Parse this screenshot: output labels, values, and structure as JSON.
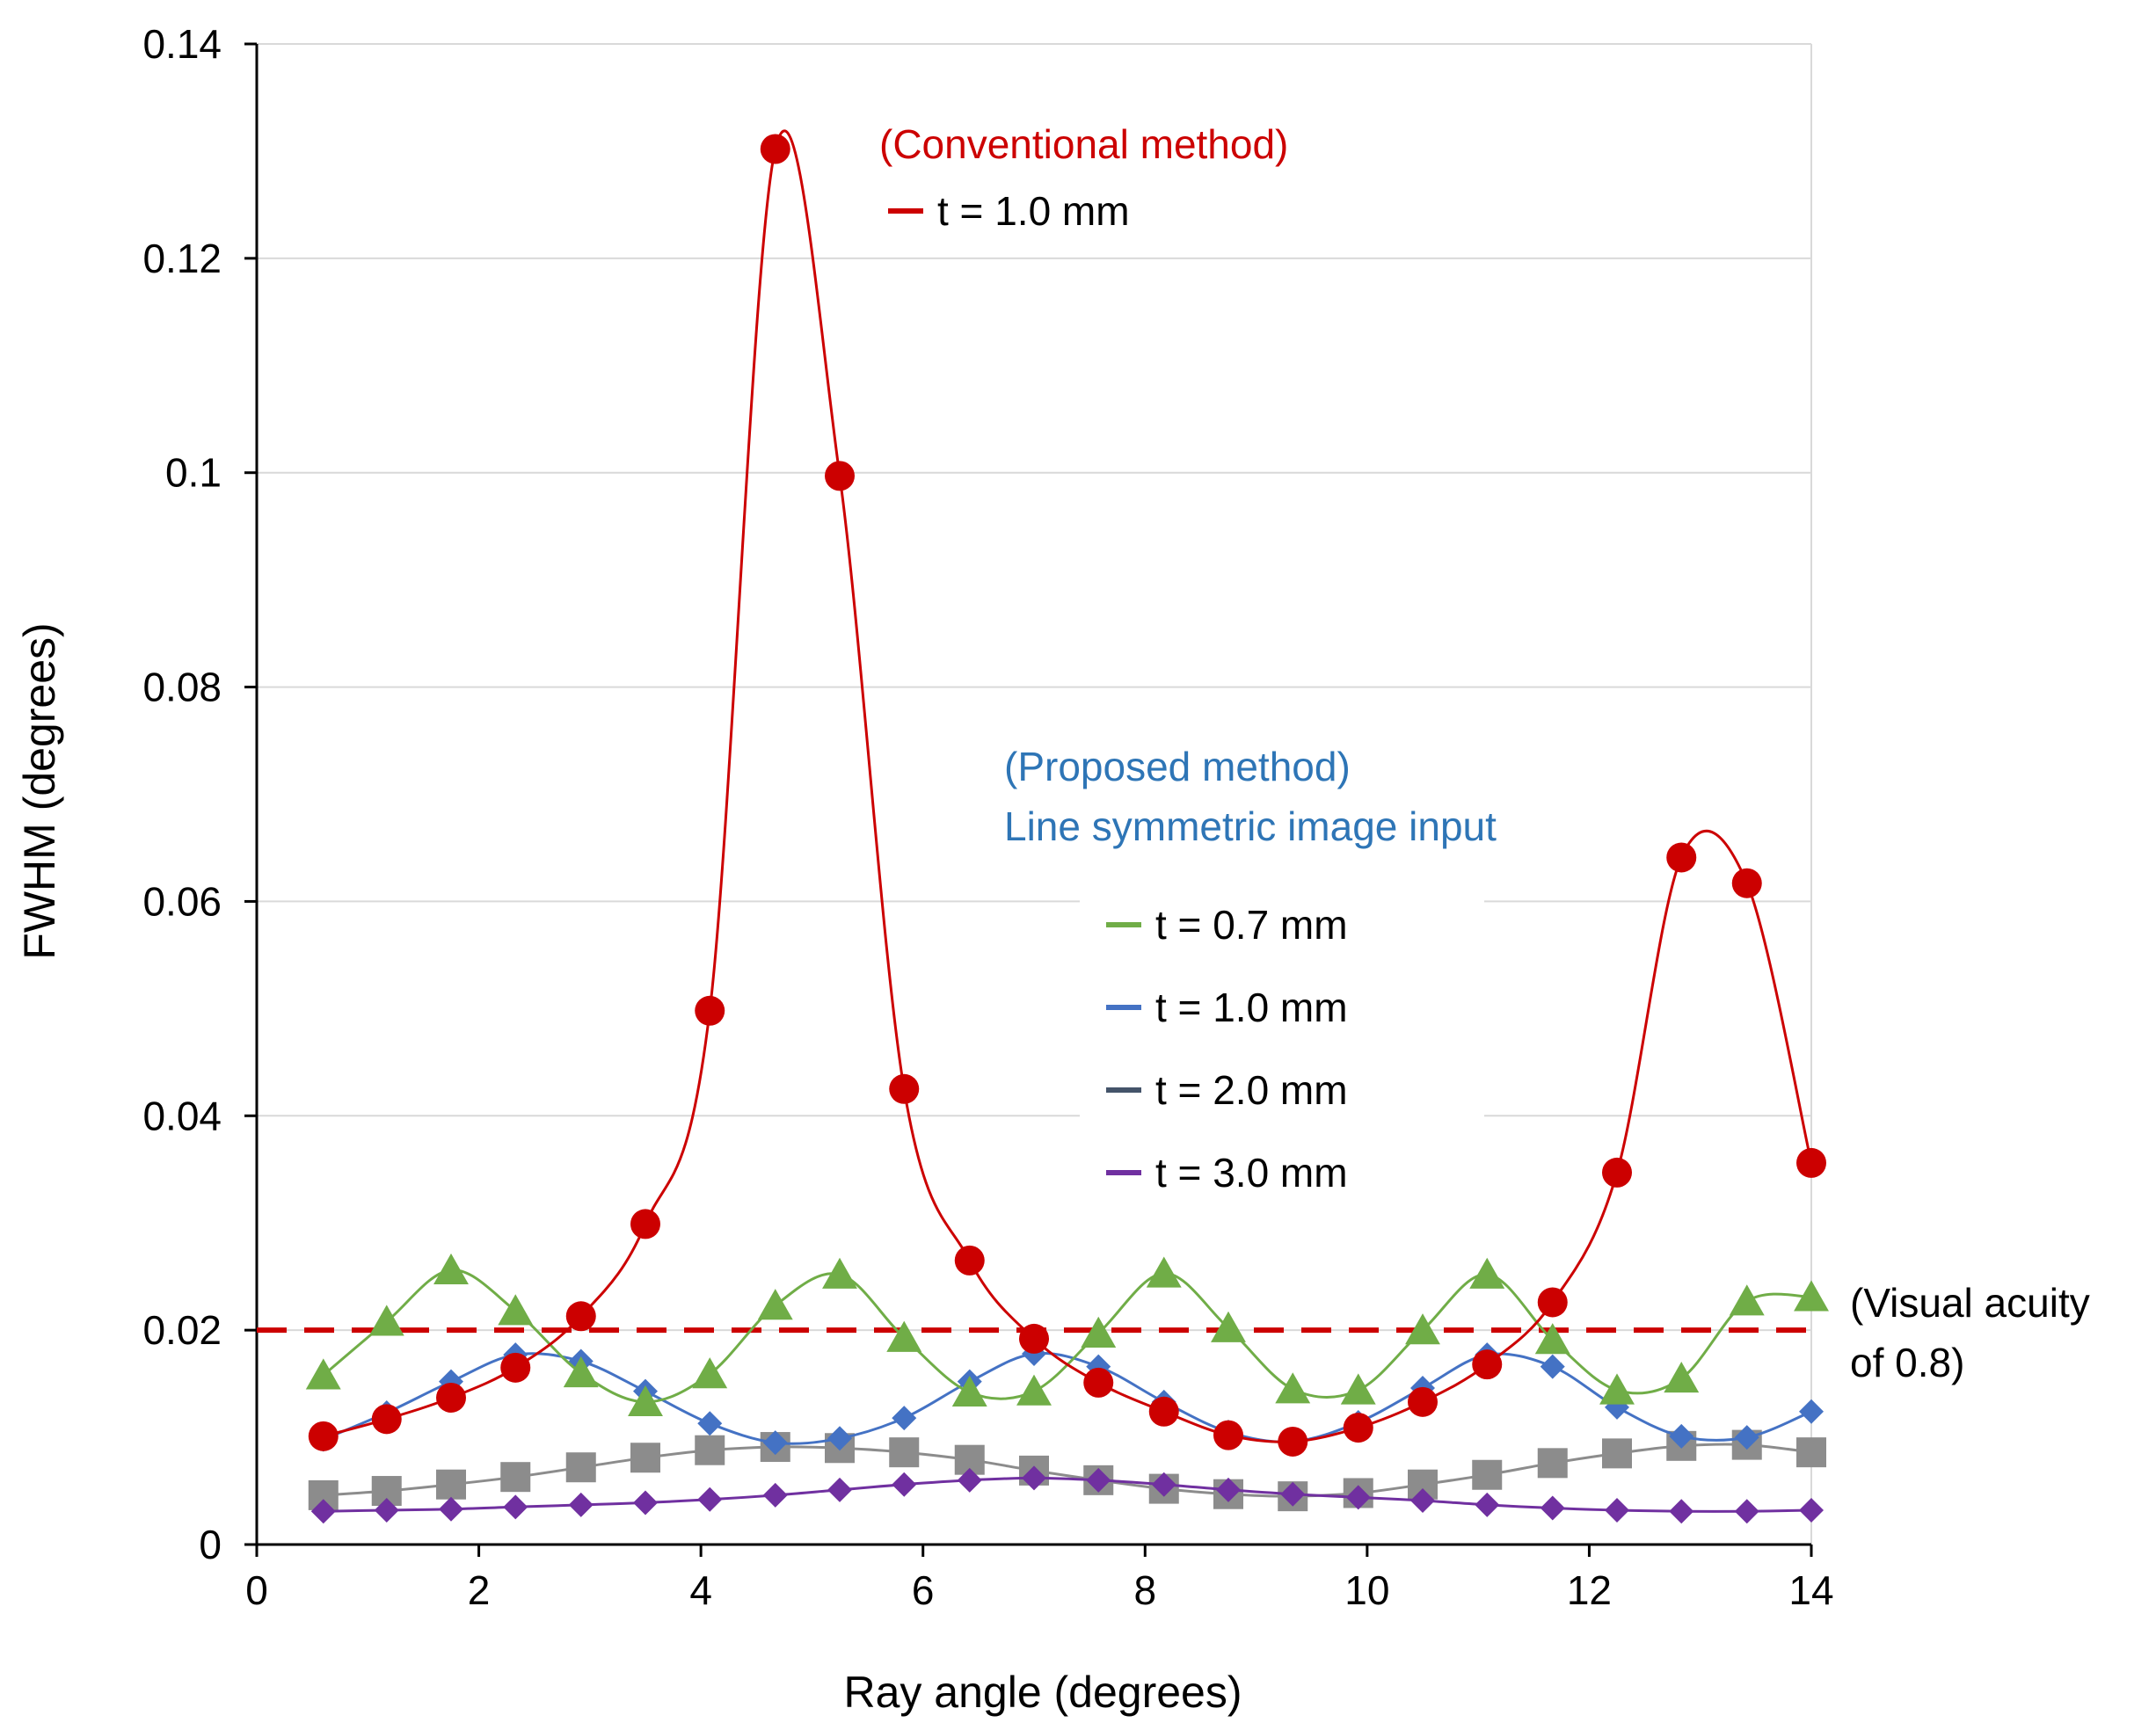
{
  "chart_data": {
    "type": "line",
    "title": "",
    "xlabel": "Ray angle (degrees)",
    "ylabel": "FWHM (degrees)",
    "xlim": [
      0,
      14
    ],
    "ylim": [
      0,
      0.14
    ],
    "xticks": [
      0,
      2,
      4,
      6,
      8,
      10,
      12,
      14
    ],
    "xtick_labels": [
      "0",
      "2",
      "4",
      "6",
      "8",
      "10",
      "12",
      "14"
    ],
    "yticks": [
      0,
      0.02,
      0.04,
      0.06,
      0.08,
      0.1,
      0.12,
      0.14
    ],
    "ytick_labels": [
      "0",
      "0.02",
      "0.04",
      "0.06",
      "0.08",
      "0.1",
      "0.12",
      "0.14"
    ],
    "grid": "horizontal",
    "x": [
      0.6,
      1.17,
      1.75,
      2.33,
      2.92,
      3.5,
      4.08,
      4.67,
      5.25,
      5.83,
      6.42,
      7.0,
      7.58,
      8.17,
      8.75,
      9.33,
      9.92,
      10.5,
      11.08,
      11.67,
      12.25,
      12.83,
      13.42,
      14.0
    ],
    "series": [
      {
        "name": "Conventional method, t = 1.0 mm",
        "color": "#cc0000",
        "marker": "circle",
        "values": [
          0.0101,
          0.0117,
          0.0137,
          0.0165,
          0.0213,
          0.0299,
          0.0498,
          0.1302,
          0.0997,
          0.0425,
          0.0265,
          0.0192,
          0.0151,
          0.0124,
          0.0102,
          0.0096,
          0.0109,
          0.0133,
          0.0168,
          0.0226,
          0.0347,
          0.0641,
          0.0617,
          0.0356
        ]
      },
      {
        "name": "t = 0.7 mm",
        "color": "#70ad47",
        "marker": "triangle",
        "values": [
          0.0158,
          0.0208,
          0.0256,
          0.0218,
          0.016,
          0.0133,
          0.0159,
          0.0223,
          0.0252,
          0.0193,
          0.0142,
          0.0143,
          0.0197,
          0.0253,
          0.0202,
          0.0145,
          0.0144,
          0.02,
          0.0252,
          0.0191,
          0.0144,
          0.0155,
          0.0227,
          0.0231
        ]
      },
      {
        "name": "t = 1.0 mm",
        "color": "#4472c4",
        "marker": "diamond",
        "values": [
          0.0098,
          0.0123,
          0.0152,
          0.0177,
          0.0171,
          0.0143,
          0.0113,
          0.0095,
          0.0099,
          0.0118,
          0.0152,
          0.0178,
          0.0166,
          0.0133,
          0.0105,
          0.0096,
          0.0114,
          0.0146,
          0.0177,
          0.0166,
          0.0128,
          0.0101,
          0.01,
          0.0124
        ]
      },
      {
        "name": "t = 2.0 mm",
        "color": "#8c8c8c",
        "marker": "square",
        "values": [
          0.0046,
          0.005,
          0.0056,
          0.0063,
          0.0072,
          0.0081,
          0.0088,
          0.0091,
          0.009,
          0.0086,
          0.0079,
          0.0069,
          0.006,
          0.0052,
          0.0047,
          0.0045,
          0.0048,
          0.0056,
          0.0065,
          0.0076,
          0.0085,
          0.0092,
          0.0093,
          0.0086
        ]
      },
      {
        "name": "t = 3.0 mm",
        "color": "#7030a0",
        "marker": "diamond",
        "values": [
          0.0031,
          0.0032,
          0.0033,
          0.0035,
          0.0037,
          0.0039,
          0.0042,
          0.0046,
          0.0051,
          0.0056,
          0.006,
          0.0062,
          0.006,
          0.0056,
          0.0051,
          0.0047,
          0.0044,
          0.0041,
          0.0037,
          0.0034,
          0.0032,
          0.0031,
          0.0031,
          0.0032
        ]
      }
    ],
    "reference_line": {
      "y": 0.02,
      "color": "#cc0000",
      "style": "dashed",
      "label_line1": "(Visual acuity",
      "label_line2": "of 0.8)"
    },
    "legend_conventional": {
      "heading": "(Conventional method)",
      "heading_color": "#cc0000",
      "entry": "t = 1.0 mm",
      "entry_color": "#cc0000"
    },
    "legend_proposed": {
      "heading_line1": "(Proposed method)",
      "heading_line2": "Line symmetric image input",
      "heading_color": "#2e75b6",
      "entries": [
        {
          "label": "t = 0.7 mm",
          "color": "#70ad47"
        },
        {
          "label": "t = 1.0 mm",
          "color": "#4472c4"
        },
        {
          "label": "t = 2.0 mm",
          "color": "#44546a"
        },
        {
          "label": "t = 3.0 mm",
          "color": "#7030a0"
        }
      ]
    }
  }
}
